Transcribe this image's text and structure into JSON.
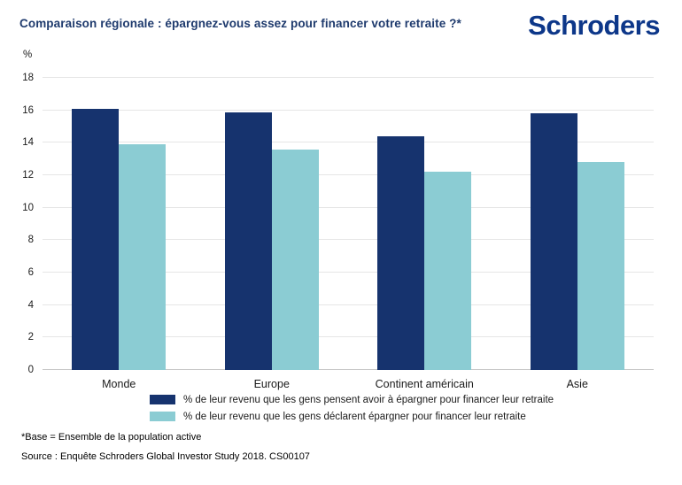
{
  "header": {
    "title": "Comparaison régionale : épargnez-vous assez pour financer votre retraite ?*",
    "logo": "Schroders"
  },
  "chart_data": {
    "type": "bar",
    "title": "Comparaison régionale : épargnez-vous assez pour financer votre retraite ?*",
    "unit_label": "%",
    "xlabel": "",
    "ylabel": "%",
    "categories": [
      "Monde",
      "Europe",
      "Continent américain",
      "Asie"
    ],
    "series": [
      {
        "name": "% de leur revenu que les gens pensent avoir à épargner pour financer leur retraite",
        "color": "#16336e",
        "values": [
          16.1,
          15.9,
          14.4,
          15.8
        ]
      },
      {
        "name": "% de leur revenu que les gens déclarent épargner pour financer leur retraite",
        "color": "#8bccd3",
        "values": [
          13.9,
          13.6,
          12.2,
          12.8
        ]
      }
    ],
    "ylim": [
      0,
      18
    ],
    "ytick_step": 2,
    "grid": true,
    "legend_position": "bottom"
  },
  "footer": {
    "base_note": "*Base = Ensemble de la population active",
    "source_note": "Source : Enquête Schroders Global Investor Study 2018. CS00107"
  },
  "colors": {
    "brand_navy": "#16336e",
    "brand_teal": "#8bccd3",
    "logo_blue": "#0d3789",
    "title_navy": "#1e3a6d",
    "gridline": "#e6e6e6",
    "axis_line": "#c9c9c9"
  }
}
